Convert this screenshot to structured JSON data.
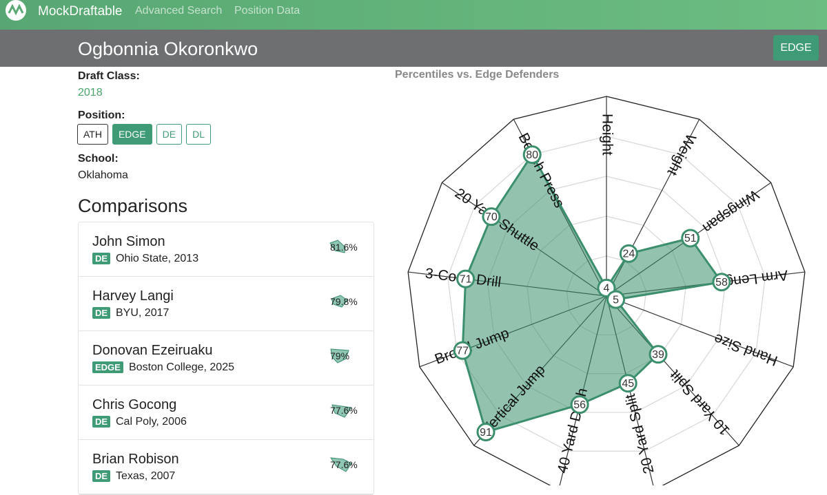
{
  "nav": {
    "brand": "MockDraftable",
    "links": [
      "Advanced Search",
      "Position Data"
    ]
  },
  "header": {
    "name": "Ogbonnia Okoronkwo",
    "badge": "EDGE"
  },
  "profile": {
    "draft_class_label": "Draft Class:",
    "draft_class": "2018",
    "position_label": "Position:",
    "positions": [
      "ATH",
      "EDGE",
      "DE",
      "DL"
    ],
    "school_label": "School:",
    "school": "Oklahoma"
  },
  "comparisons": {
    "title": "Comparisons",
    "items": [
      {
        "name": "John Simon",
        "position": "DE",
        "school": "Ohio State, 2013",
        "similarity": "81.6%"
      },
      {
        "name": "Harvey Langi",
        "position": "DE",
        "school": "BYU, 2017",
        "similarity": "79.8%"
      },
      {
        "name": "Donovan Ezeiruaku",
        "position": "EDGE",
        "school": "Boston College, 2025",
        "similarity": "79%"
      },
      {
        "name": "Chris Gocong",
        "position": "DE",
        "school": "Cal Poly, 2006",
        "similarity": "77.6%"
      },
      {
        "name": "Brian Robison",
        "position": "DE",
        "school": "Texas, 2007",
        "similarity": "77.6%"
      }
    ]
  },
  "chart_data": {
    "type": "radar",
    "title": "Percentiles vs. Edge Defenders",
    "categories": [
      "Height",
      "Weight",
      "Wingspan",
      "Arm Length",
      "Hand Size",
      "10 Yard Split",
      "20 Yard Split",
      "40 Yard Dash",
      "Vertical Jump",
      "Broad Jump",
      "3-Cone Drill",
      "20 Yard Shuttle",
      "Bench Press"
    ],
    "values": [
      4,
      24,
      51,
      58,
      5,
      39,
      45,
      56,
      91,
      77,
      71,
      70,
      80
    ],
    "rlim": [
      0,
      100
    ],
    "rticks": [
      20,
      40,
      60,
      80,
      100
    ],
    "color": "#3b8f6c"
  }
}
